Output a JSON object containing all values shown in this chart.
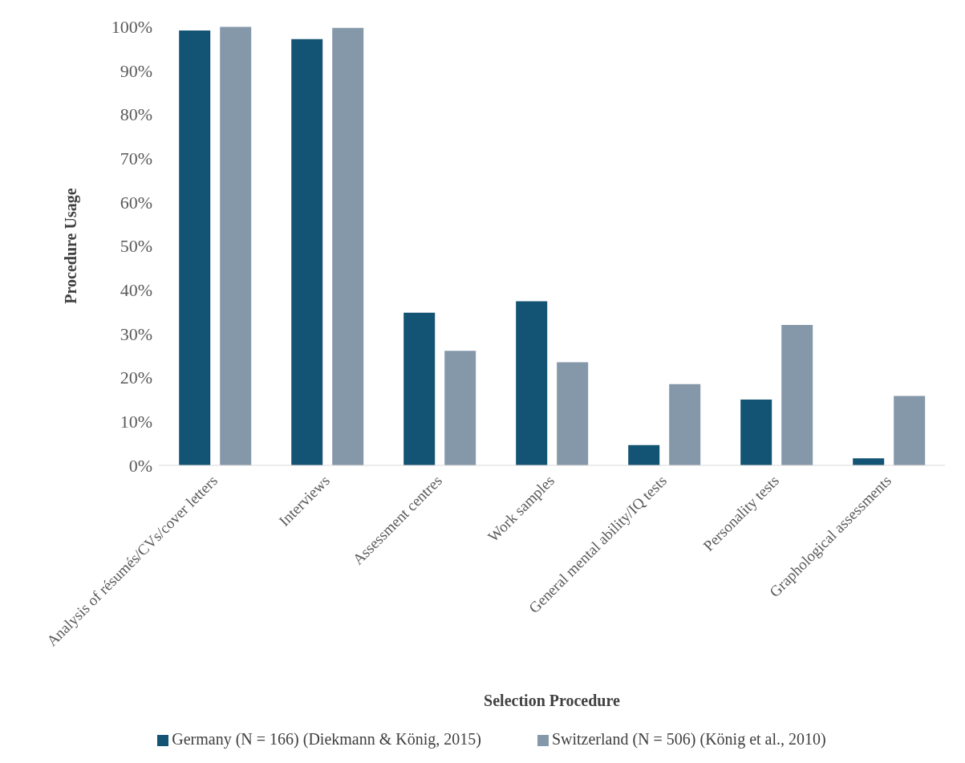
{
  "chart_data": {
    "type": "bar",
    "xlabel": "Selection Procedure",
    "ylabel": "Procedure Usage",
    "categories": [
      "Analysis of résumés/CVs/cover letters",
      "Interviews",
      "Assessment centres",
      "Work samples",
      "General mental ability/IQ tests",
      "Personality tests",
      "Graphological assessments"
    ],
    "series": [
      {
        "name": "Germany (N = 166) (Diekmann & König, 2015)",
        "color": "#135373",
        "values": [
          99.1,
          97.1,
          34.8,
          37.4,
          4.6,
          15.0,
          1.6
        ]
      },
      {
        "name": "Switzerland (N = 506) (König et al., 2010)",
        "color": "#8598aa",
        "values": [
          99.9,
          99.7,
          26.1,
          23.5,
          18.5,
          32.0,
          15.8
        ]
      }
    ],
    "ylim": [
      0,
      100
    ],
    "yticks": [
      {
        "value": 0,
        "label": "0%"
      },
      {
        "value": 10,
        "label": "10%"
      },
      {
        "value": 20,
        "label": "20%"
      },
      {
        "value": 30,
        "label": "30%"
      },
      {
        "value": 40,
        "label": "40%"
      },
      {
        "value": 50,
        "label": "50%"
      },
      {
        "value": 60,
        "label": "60%"
      },
      {
        "value": 70,
        "label": "70%"
      },
      {
        "value": 80,
        "label": "80%"
      },
      {
        "value": 90,
        "label": "90%"
      },
      {
        "value": 100,
        "label": "100%"
      }
    ],
    "grid": false,
    "legend": "bottom"
  }
}
